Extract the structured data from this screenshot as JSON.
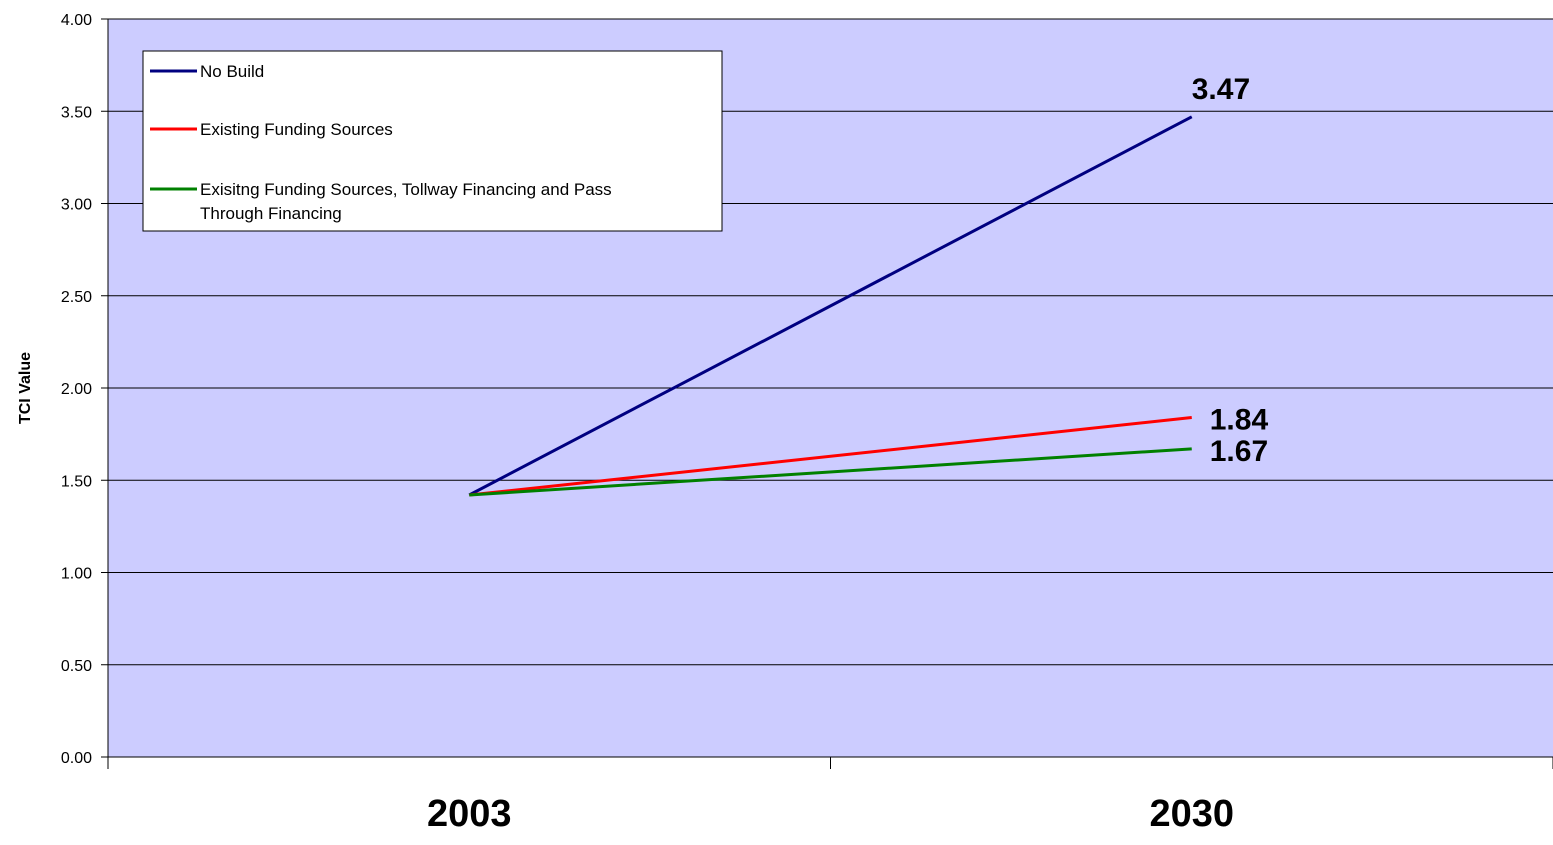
{
  "chart_data": {
    "type": "line",
    "categories": [
      "2003",
      "2030"
    ],
    "ylabel": "TCI Value",
    "ylim": [
      0,
      4
    ],
    "ytick_step": 0.5,
    "y_tick_labels": [
      "0.00",
      "0.50",
      "1.00",
      "1.50",
      "2.00",
      "2.50",
      "3.00",
      "3.50",
      "4.00"
    ],
    "grid": true,
    "legend_position": "top-left",
    "plot_background": "#ccccff",
    "series": [
      {
        "name": "No Build",
        "color": "#000080",
        "values": [
          1.42,
          3.47
        ],
        "end_label": "3.47"
      },
      {
        "name": "Existing Funding Sources",
        "color": "#ff0000",
        "values": [
          1.42,
          1.84
        ],
        "end_label": "1.84"
      },
      {
        "name": "Exisitng Funding Sources, Tollway Financing and Pass Through Financing",
        "color": "#008000",
        "values": [
          1.42,
          1.67
        ],
        "end_label": "1.67"
      }
    ]
  }
}
